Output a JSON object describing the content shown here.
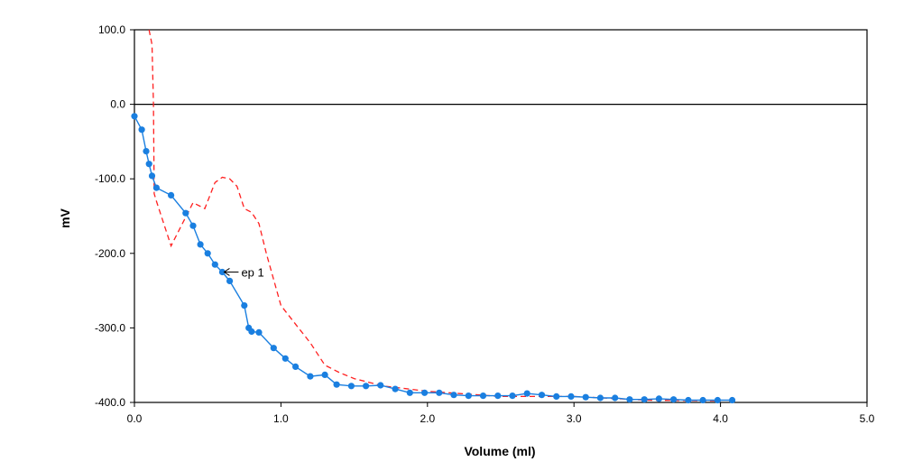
{
  "chart_data": {
    "type": "line",
    "title": "",
    "xlabel": "Volume (ml)",
    "ylabel": "mV",
    "xlim": [
      0,
      5
    ],
    "ylim": [
      -400,
      100
    ],
    "x_ticks": [
      "0.0",
      "1.0",
      "2.0",
      "3.0",
      "4.0",
      "5.0"
    ],
    "y_ticks": [
      "100.0",
      "0.0",
      "-100.0",
      "-200.0",
      "-300.0",
      "-400.0"
    ],
    "grid": false,
    "reference_line_y": 0,
    "colors": {
      "series_1": "#1a7fe0",
      "series_2": "#ff2020"
    },
    "series": [
      {
        "style": "solid-markers",
        "x": [
          0.0,
          0.05,
          0.08,
          0.1,
          0.12,
          0.15,
          0.25,
          0.35,
          0.4,
          0.45,
          0.5,
          0.55,
          0.6,
          0.65,
          0.75,
          0.78,
          0.8,
          0.85,
          0.95,
          1.03,
          1.1,
          1.2,
          1.3,
          1.38,
          1.48,
          1.58,
          1.68,
          1.78,
          1.88,
          1.98,
          2.08,
          2.18,
          2.28,
          2.38,
          2.48,
          2.58,
          2.68,
          2.78,
          2.88,
          2.98,
          3.08,
          3.18,
          3.28,
          3.38,
          3.48,
          3.58,
          3.68,
          3.78,
          3.88,
          3.98,
          4.08
        ],
        "y": [
          -16,
          -34,
          -63,
          -80,
          -96,
          -112,
          -122,
          -146,
          -163,
          -188,
          -200,
          -215,
          -225,
          -237,
          -270,
          -300,
          -305,
          -306,
          -327,
          -341,
          -352,
          -365,
          -363,
          -376,
          -378,
          -378,
          -377,
          -382,
          -387,
          -387,
          -387,
          -390,
          -391,
          -391,
          -391,
          -391,
          -388,
          -390,
          -392,
          -392,
          -393,
          -394,
          -394,
          -396,
          -396,
          -395,
          -396,
          -397,
          -397,
          -397,
          -397
        ]
      },
      {
        "style": "dashed",
        "x": [
          0.1,
          0.12,
          0.13,
          0.135,
          0.15,
          0.25,
          0.4,
          0.48,
          0.55,
          0.6,
          0.65,
          0.7,
          0.75,
          0.8,
          0.85,
          0.9,
          1.0,
          1.1,
          1.2,
          1.3,
          1.4,
          1.5,
          1.7,
          2.0,
          2.5,
          3.0,
          3.5,
          4.0
        ],
        "y": [
          100,
          80,
          0,
          -120,
          -130,
          -190,
          -132,
          -140,
          -105,
          -98,
          -100,
          -110,
          -140,
          -145,
          -160,
          -200,
          -270,
          -295,
          -320,
          -350,
          -360,
          -368,
          -378,
          -385,
          -392,
          -392,
          -397,
          -398
        ]
      }
    ],
    "annotations": [
      {
        "text": "ep 1",
        "x": 0.6,
        "y": -225,
        "arrow": "left"
      }
    ]
  }
}
